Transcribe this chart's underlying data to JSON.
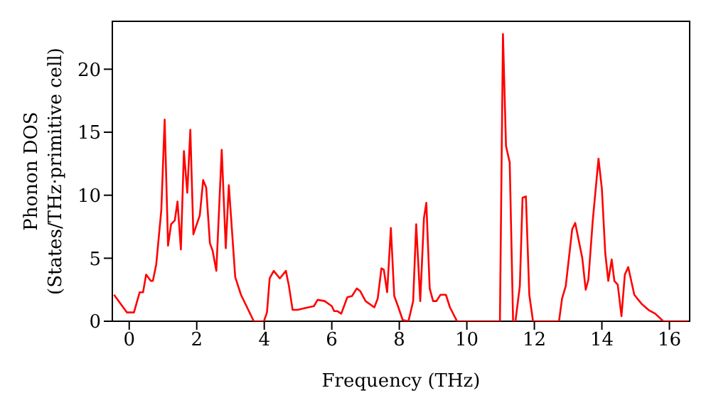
{
  "chart_data": {
    "type": "line",
    "xlabel": "Frequency (THz)",
    "ylabel": "Phonon DOS\n(States/THz·primitive cell)",
    "xlim": [
      -0.5,
      16.6
    ],
    "ylim": [
      0,
      23.8
    ],
    "xticks": [
      0,
      2,
      4,
      6,
      8,
      10,
      12,
      14,
      16
    ],
    "yticks": [
      0,
      5,
      10,
      15,
      20
    ],
    "legend": false,
    "marker": "none",
    "line_style": "solid",
    "series": [
      {
        "color": "#ff0000",
        "x": [
          -0.45,
          -0.07,
          0.14,
          0.31,
          0.41,
          0.5,
          0.64,
          0.7,
          0.8,
          0.95,
          1.05,
          1.15,
          1.24,
          1.35,
          1.43,
          1.53,
          1.62,
          1.72,
          1.81,
          1.9,
          2.09,
          2.19,
          2.28,
          2.39,
          2.47,
          2.58,
          2.74,
          2.86,
          2.95,
          3.14,
          3.31,
          3.69,
          3.99,
          4.08,
          4.16,
          4.28,
          4.46,
          4.64,
          4.73,
          4.84,
          4.98,
          5.3,
          5.47,
          5.58,
          5.79,
          6.0,
          6.07,
          6.17,
          6.28,
          6.46,
          6.6,
          6.74,
          6.84,
          7.0,
          7.26,
          7.36,
          7.47,
          7.54,
          7.64,
          7.75,
          7.85,
          7.96,
          8.1,
          8.27,
          8.41,
          8.5,
          8.62,
          8.73,
          8.8,
          8.9,
          9.0,
          9.1,
          9.22,
          9.38,
          9.5,
          9.71,
          10.48,
          10.98,
          11.07,
          11.16,
          11.27,
          11.37,
          11.44,
          11.57,
          11.65,
          11.75,
          11.85,
          11.96,
          12.73,
          12.82,
          12.93,
          13.12,
          13.21,
          13.42,
          13.52,
          13.6,
          13.73,
          13.9,
          14.0,
          14.1,
          14.19,
          14.29,
          14.37,
          14.47,
          14.58,
          14.68,
          14.78,
          14.96,
          15.17,
          15.38,
          15.58,
          15.82,
          16.56
        ],
        "values": [
          2.1,
          0.7,
          0.7,
          2.3,
          2.3,
          3.7,
          3.2,
          3.2,
          4.5,
          8.8,
          16.0,
          6.0,
          7.7,
          8.0,
          9.5,
          5.7,
          13.5,
          10.2,
          15.2,
          6.9,
          8.4,
          11.2,
          10.6,
          6.2,
          5.6,
          4.0,
          13.6,
          5.8,
          10.8,
          3.5,
          2.1,
          0,
          0,
          0.7,
          3.4,
          4.0,
          3.4,
          4.0,
          2.8,
          0.9,
          0.9,
          1.1,
          1.2,
          1.7,
          1.6,
          1.2,
          0.8,
          0.8,
          0.6,
          1.9,
          2.0,
          2.6,
          2.4,
          1.6,
          1.1,
          1.8,
          4.2,
          4.1,
          2.3,
          7.4,
          2.0,
          1.2,
          0.1,
          0,
          1.6,
          7.7,
          1.6,
          8.2,
          9.4,
          2.6,
          1.6,
          1.6,
          2.1,
          2.1,
          1.1,
          0,
          0,
          0,
          22.8,
          13.9,
          12.6,
          0,
          0,
          2.8,
          9.8,
          9.9,
          2.1,
          0,
          0,
          1.8,
          2.8,
          7.3,
          7.8,
          5.0,
          2.5,
          3.3,
          8.0,
          12.9,
          10.5,
          5.4,
          3.2,
          4.9,
          3.2,
          2.9,
          0.4,
          3.7,
          4.3,
          2.1,
          1.4,
          0.9,
          0.6,
          0,
          0
        ]
      }
    ]
  }
}
